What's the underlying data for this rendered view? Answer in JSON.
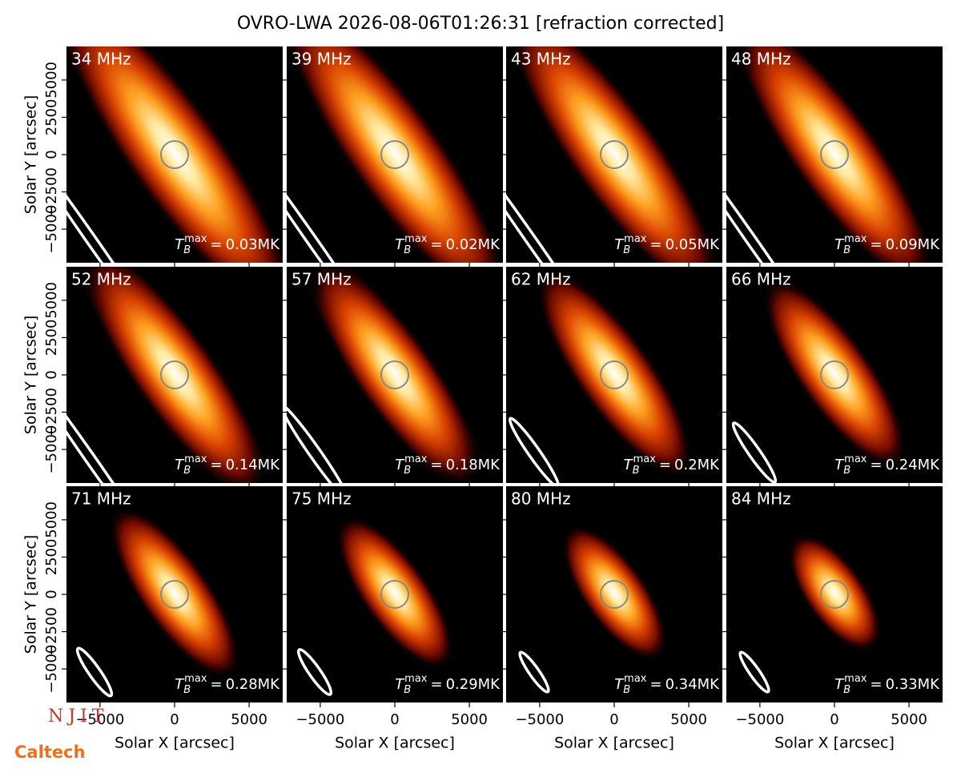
{
  "title": "OVRO-LWA 2026-08-06T01:26:31 [refraction corrected]",
  "xlabel": "Solar X [arcsec]",
  "ylabel": "Solar Y [arcsec]",
  "xlim": [
    -7250,
    7250
  ],
  "ylim": [
    -7250,
    7250
  ],
  "xticks": [
    {
      "value": -5000,
      "label": "−5000"
    },
    0,
    5000
  ],
  "yticks": [
    {
      "value": -5000,
      "label": "−5000"
    },
    {
      "value": -2500,
      "label": "−2500"
    },
    0,
    2500,
    5000
  ],
  "tmax_symbol": "T",
  "tmax_sub": "B",
  "tmax_sup": "max",
  "tmax_relation": "=",
  "tmax_unit": "MK",
  "panels": [
    {
      "frequency": "34 MHz",
      "tmax": 0.03
    },
    {
      "frequency": "39 MHz",
      "tmax": 0.02
    },
    {
      "frequency": "43 MHz",
      "tmax": 0.05
    },
    {
      "frequency": "48 MHz",
      "tmax": 0.09
    },
    {
      "frequency": "52 MHz",
      "tmax": 0.14
    },
    {
      "frequency": "57 MHz",
      "tmax": 0.18
    },
    {
      "frequency": "62 MHz",
      "tmax": 0.2
    },
    {
      "frequency": "66 MHz",
      "tmax": 0.24
    },
    {
      "frequency": "71 MHz",
      "tmax": 0.28
    },
    {
      "frequency": "75 MHz",
      "tmax": 0.29
    },
    {
      "frequency": "80 MHz",
      "tmax": 0.34
    },
    {
      "frequency": "84 MHz",
      "tmax": 0.33
    }
  ],
  "logos": [
    "NJIT",
    "Caltech"
  ]
}
